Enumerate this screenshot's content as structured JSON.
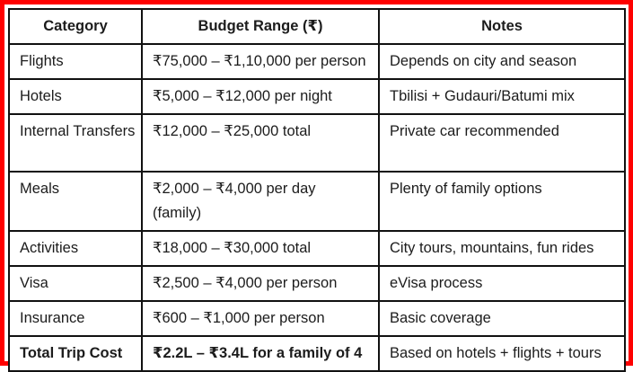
{
  "colors": {
    "frame_red": "#fe0000",
    "table_border": "#111111",
    "text": "#1c1c1c",
    "background": "#ffffff"
  },
  "table": {
    "columns": [
      {
        "label": "Category"
      },
      {
        "label": "Budget Range (₹)"
      },
      {
        "label": "Notes"
      }
    ],
    "rows": [
      {
        "category": "Flights",
        "budget": "₹75,000 – ₹1,10,000 per person",
        "notes": "Depends on city and season"
      },
      {
        "category": "Hotels",
        "budget": "₹5,000 – ₹12,000 per night",
        "notes": "Tbilisi + Gudauri/Batumi mix"
      },
      {
        "category": "Internal Transfers",
        "budget": "₹12,000 – ₹25,000 total",
        "notes": "Private car recommended"
      },
      {
        "category": "Meals",
        "budget": "₹2,000 – ₹4,000 per day",
        "budget2": "(family)",
        "notes": "Plenty of family options"
      },
      {
        "category": "Activities",
        "budget": "₹18,000 – ₹30,000 total",
        "notes": "City tours, mountains, fun rides"
      },
      {
        "category": "Visa",
        "budget": "₹2,500 – ₹4,000 per person",
        "notes": "eVisa process"
      },
      {
        "category": "Insurance",
        "budget": "₹600 – ₹1,000 per person",
        "notes": "Basic coverage"
      },
      {
        "category": "Total Trip Cost",
        "budget": "₹2.2L – ₹3.4L for a family of 4",
        "notes": "Based on hotels + flights + tours"
      }
    ]
  }
}
